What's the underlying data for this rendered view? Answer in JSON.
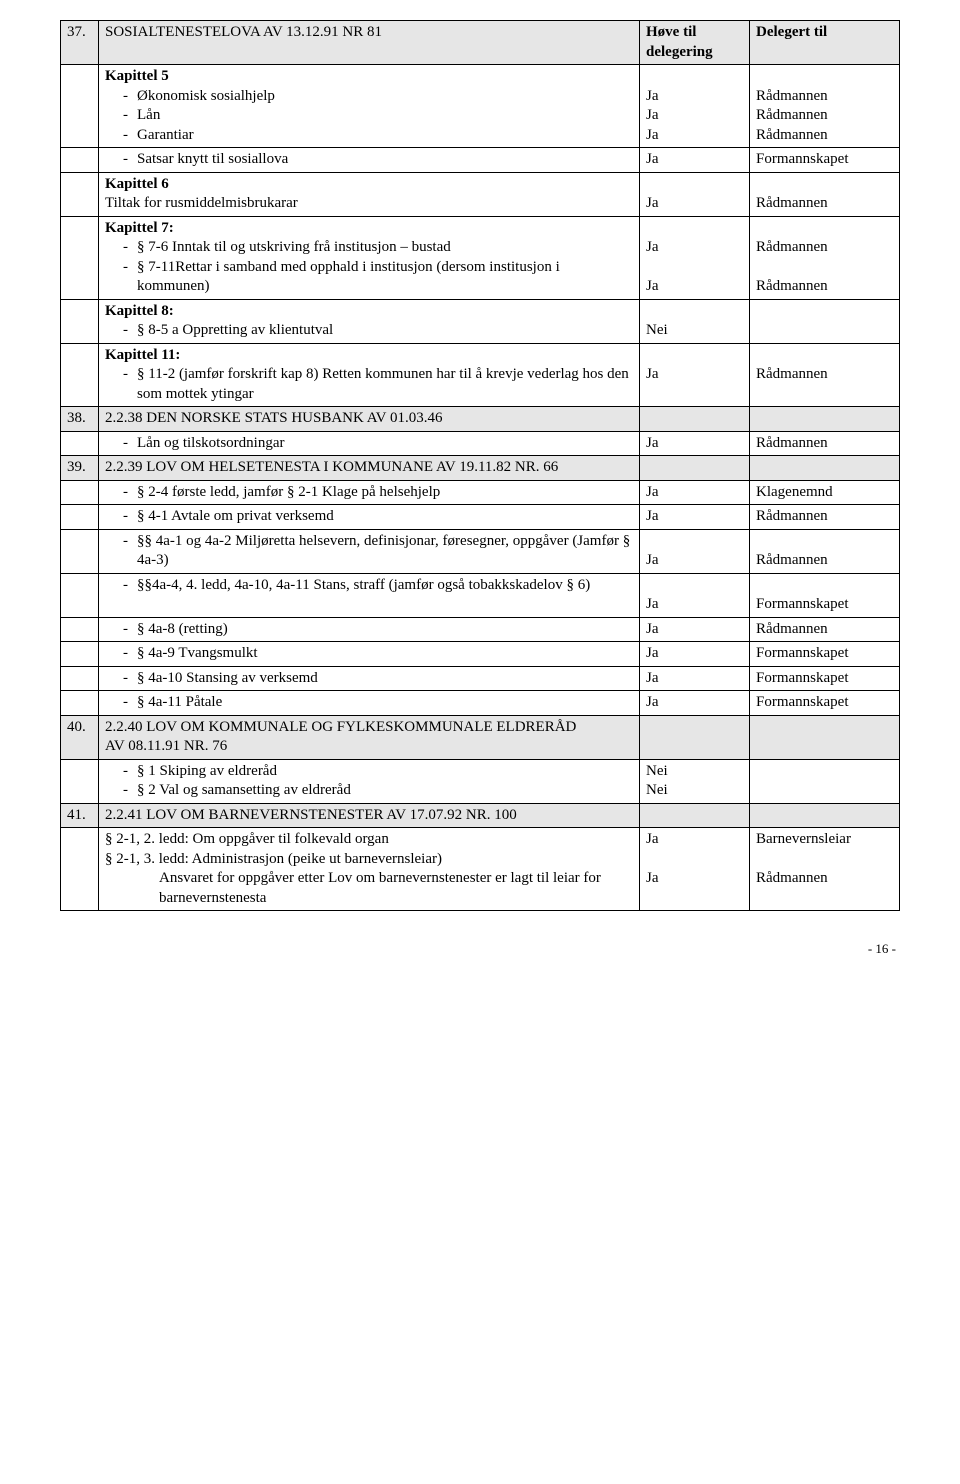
{
  "header": {
    "hove": "Høve til delegering",
    "delegert": "Delegert til"
  },
  "rows": [
    {
      "num": "37.",
      "shaded": true,
      "cells": [
        {
          "text": "SOSIALTENESTELOVA  AV 13.12.91 NR 81"
        },
        {
          "bind_header_hove": true,
          "bold": true
        },
        {
          "bind_header_del": true,
          "bold": true
        }
      ]
    },
    {
      "cells": [
        {
          "lines": [
            {
              "bold": true,
              "text": "Kapittel 5"
            },
            {
              "bullet": true,
              "text": "Økonomisk sosialhjelp"
            },
            {
              "bullet": true,
              "text": "Lån"
            },
            {
              "bullet": true,
              "text": "Garantiar"
            }
          ]
        },
        {
          "lines": [
            {
              "text": ""
            },
            {
              "text": "Ja"
            },
            {
              "text": "Ja"
            },
            {
              "text": "Ja"
            }
          ]
        },
        {
          "lines": [
            {
              "text": ""
            },
            {
              "text": "Rådmannen"
            },
            {
              "text": "Rådmannen"
            },
            {
              "text": "Rådmannen"
            }
          ]
        }
      ]
    },
    {
      "cells": [
        {
          "lines": [
            {
              "bullet": true,
              "text": "Satsar knytt til sosiallova"
            }
          ]
        },
        {
          "text": "Ja"
        },
        {
          "text": "Formannskapet"
        }
      ]
    },
    {
      "cells": [
        {
          "lines": [
            {
              "bold": true,
              "text": "Kapittel 6"
            },
            {
              "text": "Tiltak for rusmiddelmisbrukarar"
            }
          ]
        },
        {
          "lines": [
            {
              "text": ""
            },
            {
              "text": "Ja"
            }
          ]
        },
        {
          "lines": [
            {
              "text": ""
            },
            {
              "text": "Rådmannen"
            }
          ]
        }
      ]
    },
    {
      "cells": [
        {
          "lines": [
            {
              "bold": true,
              "text": "Kapittel 7:"
            },
            {
              "bullet": true,
              "text": "§ 7-6 Inntak til og utskriving frå institusjon – bustad"
            },
            {
              "bullet": true,
              "text": "§ 7-11Rettar i samband med opphald i institusjon (dersom institusjon i kommunen)"
            }
          ]
        },
        {
          "lines": [
            {
              "text": ""
            },
            {
              "text": "Ja"
            },
            {
              "text": ""
            },
            {
              "text": "Ja"
            }
          ]
        },
        {
          "lines": [
            {
              "text": ""
            },
            {
              "text": "Rådmannen"
            },
            {
              "text": ""
            },
            {
              "text": "Rådmannen"
            }
          ]
        }
      ]
    },
    {
      "cells": [
        {
          "lines": [
            {
              "bold": true,
              "text": "Kapittel 8:"
            },
            {
              "bullet": true,
              "text": "§ 8-5 a Oppretting av klientutval"
            }
          ]
        },
        {
          "lines": [
            {
              "text": ""
            },
            {
              "text": "Nei"
            }
          ]
        },
        {
          "text": ""
        }
      ]
    },
    {
      "cells": [
        {
          "lines": [
            {
              "bold": true,
              "text": "Kapittel 11:"
            },
            {
              "bullet": true,
              "text": "§ 11-2 (jamfør forskrift kap 8) Retten kommunen har til å krevje vederlag hos den som mottek ytingar"
            }
          ]
        },
        {
          "lines": [
            {
              "text": ""
            },
            {
              "text": "Ja"
            }
          ]
        },
        {
          "lines": [
            {
              "text": ""
            },
            {
              "text": "Rådmannen"
            }
          ]
        }
      ]
    },
    {
      "num": "38.",
      "shaded": true,
      "cells": [
        {
          "text": "2.2.38 DEN NORSKE STATS  HUSBANK AV 01.03.46"
        },
        {
          "text": ""
        },
        {
          "text": ""
        }
      ]
    },
    {
      "cells": [
        {
          "lines": [
            {
              "bullet": true,
              "text": "Lån og tilskotsordningar"
            }
          ]
        },
        {
          "text": "Ja"
        },
        {
          "text": "Rådmannen"
        }
      ]
    },
    {
      "num": "39.",
      "shaded": true,
      "cells": [
        {
          "text": "2.2.39 LOV OM HELSETENESTA I KOMMUNANE AV 19.11.82 NR. 66"
        },
        {
          "text": ""
        },
        {
          "text": ""
        }
      ]
    },
    {
      "cells": [
        {
          "lines": [
            {
              "bullet": true,
              "text": "§ 2-4 første ledd, jamfør § 2-1 Klage på helsehjelp"
            }
          ]
        },
        {
          "text": "Ja"
        },
        {
          "text": "Klagenemnd"
        }
      ]
    },
    {
      "cells": [
        {
          "lines": [
            {
              "bullet": true,
              "text": "§ 4-1 Avtale om privat verksemd"
            }
          ]
        },
        {
          "text": "Ja"
        },
        {
          "text": "Rådmannen"
        }
      ]
    },
    {
      "cells": [
        {
          "lines": [
            {
              "bullet": true,
              "text": "§§ 4a-1 og 4a-2 Miljøretta helsevern, definisjonar, føresegner, oppgåver (Jamfør § 4a-3)"
            }
          ]
        },
        {
          "lines": [
            {
              "text": ""
            },
            {
              "text": "Ja"
            }
          ]
        },
        {
          "lines": [
            {
              "text": ""
            },
            {
              "text": "Rådmannen"
            }
          ]
        }
      ]
    },
    {
      "cells": [
        {
          "lines": [
            {
              "bullet": true,
              "text": "§§4a-4, 4. ledd, 4a-10, 4a-11 Stans, straff (jamfør også tobakkskadelov § 6)"
            }
          ]
        },
        {
          "lines": [
            {
              "text": ""
            },
            {
              "text": "Ja"
            }
          ]
        },
        {
          "lines": [
            {
              "text": ""
            },
            {
              "text": "Formannskapet"
            }
          ]
        }
      ]
    },
    {
      "cells": [
        {
          "lines": [
            {
              "bullet": true,
              "text": "§ 4a-8 (retting)"
            }
          ]
        },
        {
          "text": "Ja"
        },
        {
          "text": "Rådmannen"
        }
      ]
    },
    {
      "cells": [
        {
          "lines": [
            {
              "bullet": true,
              "text": "§ 4a-9 Tvangsmulkt"
            }
          ]
        },
        {
          "text": "Ja"
        },
        {
          "text": "Formannskapet"
        }
      ]
    },
    {
      "cells": [
        {
          "lines": [
            {
              "bullet": true,
              "text": "§ 4a-10 Stansing av verksemd"
            }
          ]
        },
        {
          "text": "Ja"
        },
        {
          "text": "Formannskapet"
        }
      ]
    },
    {
      "cells": [
        {
          "lines": [
            {
              "bullet": true,
              "text": "§ 4a-11 Påtale"
            }
          ]
        },
        {
          "text": "Ja"
        },
        {
          "text": "Formannskapet"
        }
      ]
    },
    {
      "num": "40.",
      "shaded": true,
      "cells": [
        {
          "text": "2.2.40 LOV OM KOMMUNALE OG FYLKESKOMMUNALE ELDRERÅD\nAV 08.11.91 NR. 76"
        },
        {
          "text": ""
        },
        {
          "text": ""
        }
      ]
    },
    {
      "cells": [
        {
          "lines": [
            {
              "bullet": true,
              "text": "§ 1 Skiping av eldreråd"
            },
            {
              "bullet": true,
              "text": "§ 2 Val og samansetting av eldreråd"
            }
          ]
        },
        {
          "lines": [
            {
              "text": "Nei"
            },
            {
              "text": "Nei"
            }
          ]
        },
        {
          "text": ""
        }
      ]
    },
    {
      "num": "41.",
      "shaded": true,
      "cells": [
        {
          "text": "2.2.41 LOV OM BARNEVERNSTENESTER AV 17.07.92 NR. 100"
        },
        {
          "text": ""
        },
        {
          "text": ""
        }
      ]
    },
    {
      "cells": [
        {
          "lines": [
            {
              "text": "§ 2-1, 2. ledd: Om oppgåver til folkevald organ"
            },
            {
              "text": "§ 2-1, 3. ledd: Administrasjon (peike ut barnevernsleiar)"
            },
            {
              "sub": true,
              "text": "Ansvaret for oppgåver etter Lov om barnevernstenester er lagt til leiar for barnevernstenesta"
            }
          ]
        },
        {
          "lines": [
            {
              "text": "Ja"
            },
            {
              "text": ""
            },
            {
              "text": "Ja"
            }
          ]
        },
        {
          "lines": [
            {
              "text": "Barnevernsleiar"
            },
            {
              "text": ""
            },
            {
              "text": "Rådmannen"
            }
          ]
        }
      ]
    }
  ],
  "page_number": "- 16 -"
}
